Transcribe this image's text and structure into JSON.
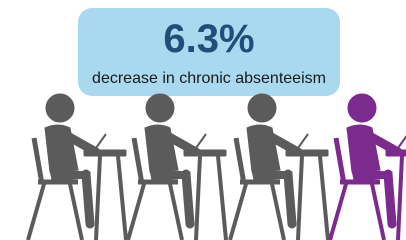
{
  "headline": {
    "value": "6.3%",
    "caption": "decrease in chronic absenteeism"
  }
}
